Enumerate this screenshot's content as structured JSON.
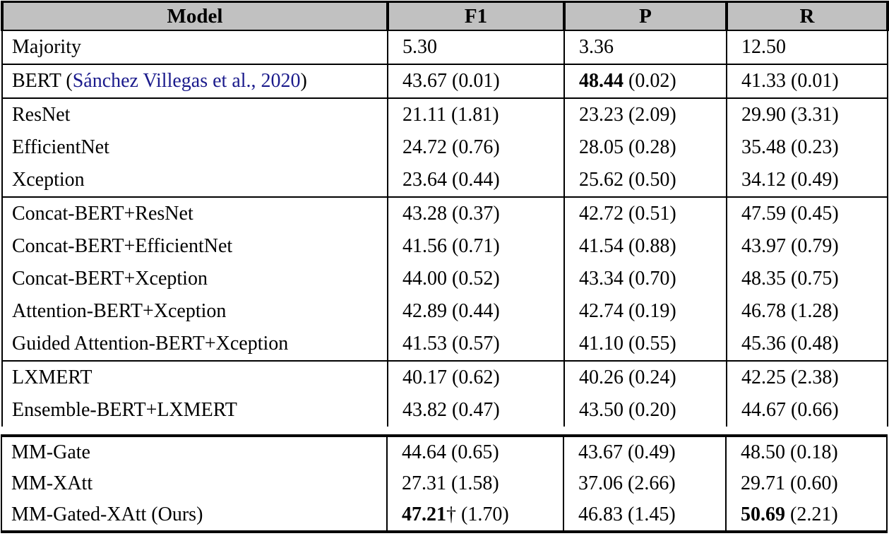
{
  "table": {
    "columns": [
      "Model",
      "F1",
      "P",
      "R"
    ],
    "header_bg": "#c1c1c1",
    "citation_color": "#1b1b8c",
    "sections": [
      {
        "placement": "top",
        "rows": [
          {
            "cells": [
              [
                {
                  "t": "Majority"
                }
              ],
              [
                {
                  "t": "5.30"
                }
              ],
              [
                {
                  "t": "3.36"
                }
              ],
              [
                {
                  "t": "12.50"
                }
              ]
            ]
          }
        ]
      },
      {
        "placement": "top",
        "rows": [
          {
            "cells": [
              [
                {
                  "t": "BERT ("
                },
                {
                  "t": "Sánchez Villegas et al., 2020",
                  "cite": true
                },
                {
                  "t": ")"
                }
              ],
              [
                {
                  "t": "43.67 (0.01)"
                }
              ],
              [
                {
                  "t": "48.44",
                  "bold": true
                },
                {
                  "t": " (0.02)"
                }
              ],
              [
                {
                  "t": "41.33 (0.01)"
                }
              ]
            ]
          }
        ]
      },
      {
        "placement": "top",
        "rows": [
          {
            "cells": [
              [
                {
                  "t": "ResNet"
                }
              ],
              [
                {
                  "t": "21.11 (1.81)"
                }
              ],
              [
                {
                  "t": "23.23 (2.09)"
                }
              ],
              [
                {
                  "t": "29.90 (3.31)"
                }
              ]
            ]
          },
          {
            "cells": [
              [
                {
                  "t": "EfficientNet"
                }
              ],
              [
                {
                  "t": "24.72 (0.76)"
                }
              ],
              [
                {
                  "t": "28.05 (0.28)"
                }
              ],
              [
                {
                  "t": "35.48 (0.23)"
                }
              ]
            ]
          },
          {
            "cells": [
              [
                {
                  "t": "Xception"
                }
              ],
              [
                {
                  "t": "23.64 (0.44)"
                }
              ],
              [
                {
                  "t": "25.62 (0.50)"
                }
              ],
              [
                {
                  "t": "34.12 (0.49)"
                }
              ]
            ]
          }
        ]
      },
      {
        "placement": "top",
        "rows": [
          {
            "cells": [
              [
                {
                  "t": "Concat-BERT+ResNet"
                }
              ],
              [
                {
                  "t": "43.28 (0.37)"
                }
              ],
              [
                {
                  "t": "42.72 (0.51)"
                }
              ],
              [
                {
                  "t": "47.59 (0.45)"
                }
              ]
            ]
          },
          {
            "cells": [
              [
                {
                  "t": "Concat-BERT+EfficientNet"
                }
              ],
              [
                {
                  "t": "41.56 (0.71)"
                }
              ],
              [
                {
                  "t": "41.54 (0.88)"
                }
              ],
              [
                {
                  "t": "43.97 (0.79)"
                }
              ]
            ]
          },
          {
            "cells": [
              [
                {
                  "t": "Concat-BERT+Xception"
                }
              ],
              [
                {
                  "t": "44.00 (0.52)"
                }
              ],
              [
                {
                  "t": "43.34 (0.70)"
                }
              ],
              [
                {
                  "t": "48.35 (0.75)"
                }
              ]
            ]
          },
          {
            "cells": [
              [
                {
                  "t": "Attention-BERT+Xception"
                }
              ],
              [
                {
                  "t": "42.89 (0.44)"
                }
              ],
              [
                {
                  "t": "42.74 (0.19)"
                }
              ],
              [
                {
                  "t": "46.78 (1.28)"
                }
              ]
            ]
          },
          {
            "cells": [
              [
                {
                  "t": "Guided Attention-BERT+Xception"
                }
              ],
              [
                {
                  "t": "41.53 (0.57)"
                }
              ],
              [
                {
                  "t": "41.10 (0.55)"
                }
              ],
              [
                {
                  "t": "45.36 (0.48)"
                }
              ]
            ]
          }
        ]
      },
      {
        "placement": "top",
        "rows": [
          {
            "cells": [
              [
                {
                  "t": "LXMERT"
                }
              ],
              [
                {
                  "t": "40.17 (0.62)"
                }
              ],
              [
                {
                  "t": "40.26 (0.24)"
                }
              ],
              [
                {
                  "t": "42.25 (2.38)"
                }
              ]
            ]
          },
          {
            "cells": [
              [
                {
                  "t": "Ensemble-BERT+LXMERT"
                }
              ],
              [
                {
                  "t": "43.82 (0.47)"
                }
              ],
              [
                {
                  "t": "43.50 (0.20)"
                }
              ],
              [
                {
                  "t": "44.67 (0.66)"
                }
              ]
            ]
          }
        ]
      },
      {
        "placement": "bottom",
        "rows": [
          {
            "cells": [
              [
                {
                  "t": "MM-Gate"
                }
              ],
              [
                {
                  "t": "44.64 (0.65)"
                }
              ],
              [
                {
                  "t": "43.67 (0.49)"
                }
              ],
              [
                {
                  "t": "48.50 (0.18)"
                }
              ]
            ]
          },
          {
            "cells": [
              [
                {
                  "t": "MM-XAtt"
                }
              ],
              [
                {
                  "t": "27.31 (1.58)"
                }
              ],
              [
                {
                  "t": "37.06 (2.66)"
                }
              ],
              [
                {
                  "t": "29.71 (0.60)"
                }
              ]
            ]
          },
          {
            "cells": [
              [
                {
                  "t": "MM-Gated-XAtt (Ours)"
                }
              ],
              [
                {
                  "t": "47.21",
                  "bold": true
                },
                {
                  "t": "† (1.70)"
                }
              ],
              [
                {
                  "t": "46.83 (1.45)"
                }
              ],
              [
                {
                  "t": "50.69",
                  "bold": true
                },
                {
                  "t": " (2.21)"
                }
              ]
            ]
          }
        ]
      }
    ]
  }
}
